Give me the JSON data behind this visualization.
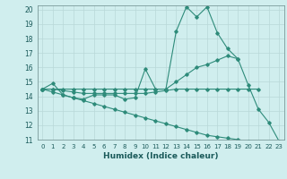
{
  "xlabel": "Humidex (Indice chaleur)",
  "x": [
    0,
    1,
    2,
    3,
    4,
    5,
    6,
    7,
    8,
    9,
    10,
    11,
    12,
    13,
    14,
    15,
    16,
    17,
    18,
    19,
    20,
    21,
    22,
    23
  ],
  "series": [
    [
      14.5,
      14.9,
      14.1,
      13.9,
      13.8,
      14.1,
      14.1,
      14.1,
      13.8,
      13.9,
      15.9,
      14.5,
      14.5,
      18.5,
      20.2,
      19.5,
      20.2,
      18.4,
      17.3,
      16.6,
      14.8,
      13.1,
      12.2,
      10.9
    ],
    [
      14.5,
      14.5,
      14.5,
      14.5,
      14.5,
      14.5,
      14.5,
      14.5,
      14.5,
      14.5,
      14.5,
      14.5,
      14.5,
      15.0,
      15.5,
      16.0,
      16.2,
      16.5,
      16.8,
      16.6,
      null,
      null,
      null,
      null
    ],
    [
      14.5,
      14.5,
      14.4,
      14.3,
      14.2,
      14.2,
      14.2,
      14.2,
      14.2,
      14.2,
      14.2,
      14.3,
      14.4,
      14.5,
      14.5,
      14.5,
      14.5,
      14.5,
      14.5,
      14.5,
      14.5,
      14.5,
      null,
      null
    ],
    [
      14.5,
      14.3,
      14.1,
      13.9,
      13.7,
      13.5,
      13.3,
      13.1,
      12.9,
      12.7,
      12.5,
      12.3,
      12.1,
      11.9,
      11.7,
      11.5,
      11.3,
      11.2,
      11.1,
      11.0,
      10.9,
      10.8,
      10.8,
      10.75
    ]
  ],
  "color": "#2e8b7a",
  "bg_color": "#d0eeee",
  "grid_color": "#b8d8d8",
  "ylim": [
    11,
    20
  ],
  "xlim": [
    -0.5,
    23.5
  ]
}
